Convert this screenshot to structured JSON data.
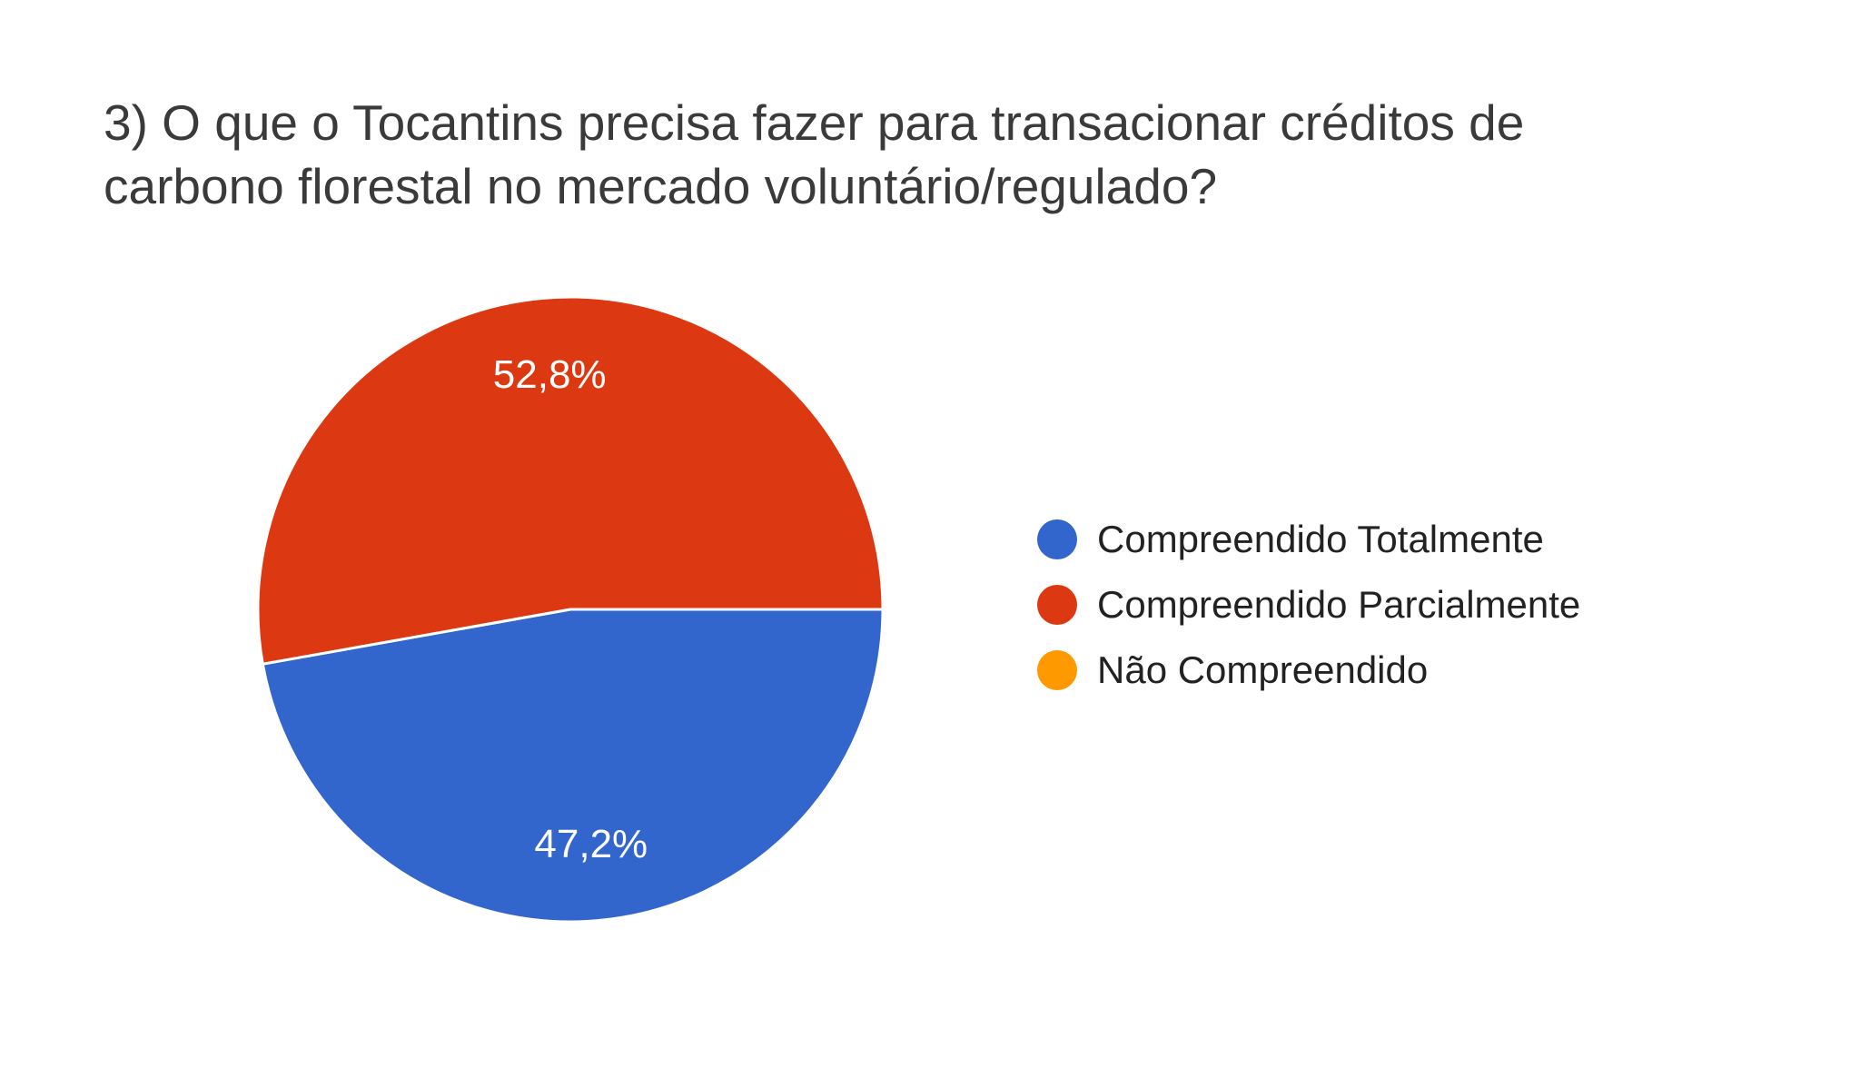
{
  "chart_data": {
    "type": "pie",
    "title": [
      "3) O que o Tocantins precisa fazer para transacionar créditos de",
      "carbono florestal no mercado voluntário/regulado?"
    ],
    "legend_position": "right",
    "slices": [
      {
        "name": "Compreendido Totalmente",
        "value": 47.2,
        "label": "47,2%",
        "color": "#3366cc"
      },
      {
        "name": "Compreendido Parcialmente",
        "value": 52.8,
        "label": "52,8%",
        "color": "#dc3912"
      },
      {
        "name": "Não Compreendido",
        "value": 0,
        "label": "",
        "color": "#ff9900"
      }
    ]
  }
}
